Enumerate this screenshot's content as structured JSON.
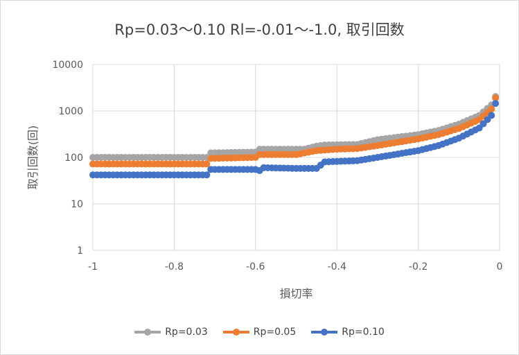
{
  "chart_data": {
    "type": "scatter",
    "title": "Rp=0.03～0.10 Rl=-0.01～-1.0, 取引回数",
    "xlabel": "損切率",
    "ylabel": "取引回数(回)",
    "xlim": [
      -1,
      0
    ],
    "ylim": [
      1,
      10000
    ],
    "y_scale": "log",
    "grid": true,
    "legend": "bottom",
    "x_ticks": [
      "-1",
      "-0.8",
      "-0.6",
      "-0.4",
      "-0.2",
      "0"
    ],
    "y_ticks": [
      "1",
      "10",
      "100",
      "1000",
      "10000"
    ],
    "series": [
      {
        "name": "Rp=0.03",
        "color": "#a5a5a5",
        "points": [
          [
            -1.0,
            100
          ],
          [
            -0.72,
            100
          ],
          [
            -0.71,
            125
          ],
          [
            -0.6,
            130
          ],
          [
            -0.59,
            150
          ],
          [
            -0.48,
            150
          ],
          [
            -0.45,
            175
          ],
          [
            -0.43,
            185
          ],
          [
            -0.35,
            190
          ],
          [
            -0.3,
            240
          ],
          [
            -0.2,
            310
          ],
          [
            -0.15,
            380
          ],
          [
            -0.1,
            520
          ],
          [
            -0.05,
            800
          ],
          [
            -0.02,
            1350
          ],
          [
            -0.01,
            2050
          ]
        ]
      },
      {
        "name": "Rp=0.05",
        "color": "#ed7d31",
        "points": [
          [
            -1.0,
            72
          ],
          [
            -0.72,
            72
          ],
          [
            -0.71,
            95
          ],
          [
            -0.6,
            100
          ],
          [
            -0.59,
            115
          ],
          [
            -0.5,
            115
          ],
          [
            -0.45,
            140
          ],
          [
            -0.4,
            150
          ],
          [
            -0.35,
            155
          ],
          [
            -0.3,
            180
          ],
          [
            -0.2,
            250
          ],
          [
            -0.15,
            310
          ],
          [
            -0.1,
            420
          ],
          [
            -0.05,
            650
          ],
          [
            -0.02,
            1100
          ],
          [
            -0.01,
            1900
          ]
        ]
      },
      {
        "name": "Rp=0.10",
        "color": "#4472c4",
        "points": [
          [
            -1.0,
            42
          ],
          [
            -0.72,
            42
          ],
          [
            -0.71,
            55
          ],
          [
            -0.6,
            55
          ],
          [
            -0.59,
            52
          ],
          [
            -0.58,
            60
          ],
          [
            -0.5,
            58
          ],
          [
            -0.45,
            58
          ],
          [
            -0.43,
            80
          ],
          [
            -0.35,
            85
          ],
          [
            -0.3,
            100
          ],
          [
            -0.2,
            140
          ],
          [
            -0.15,
            180
          ],
          [
            -0.1,
            260
          ],
          [
            -0.05,
            430
          ],
          [
            -0.02,
            800
          ],
          [
            -0.01,
            1450
          ]
        ]
      }
    ]
  }
}
